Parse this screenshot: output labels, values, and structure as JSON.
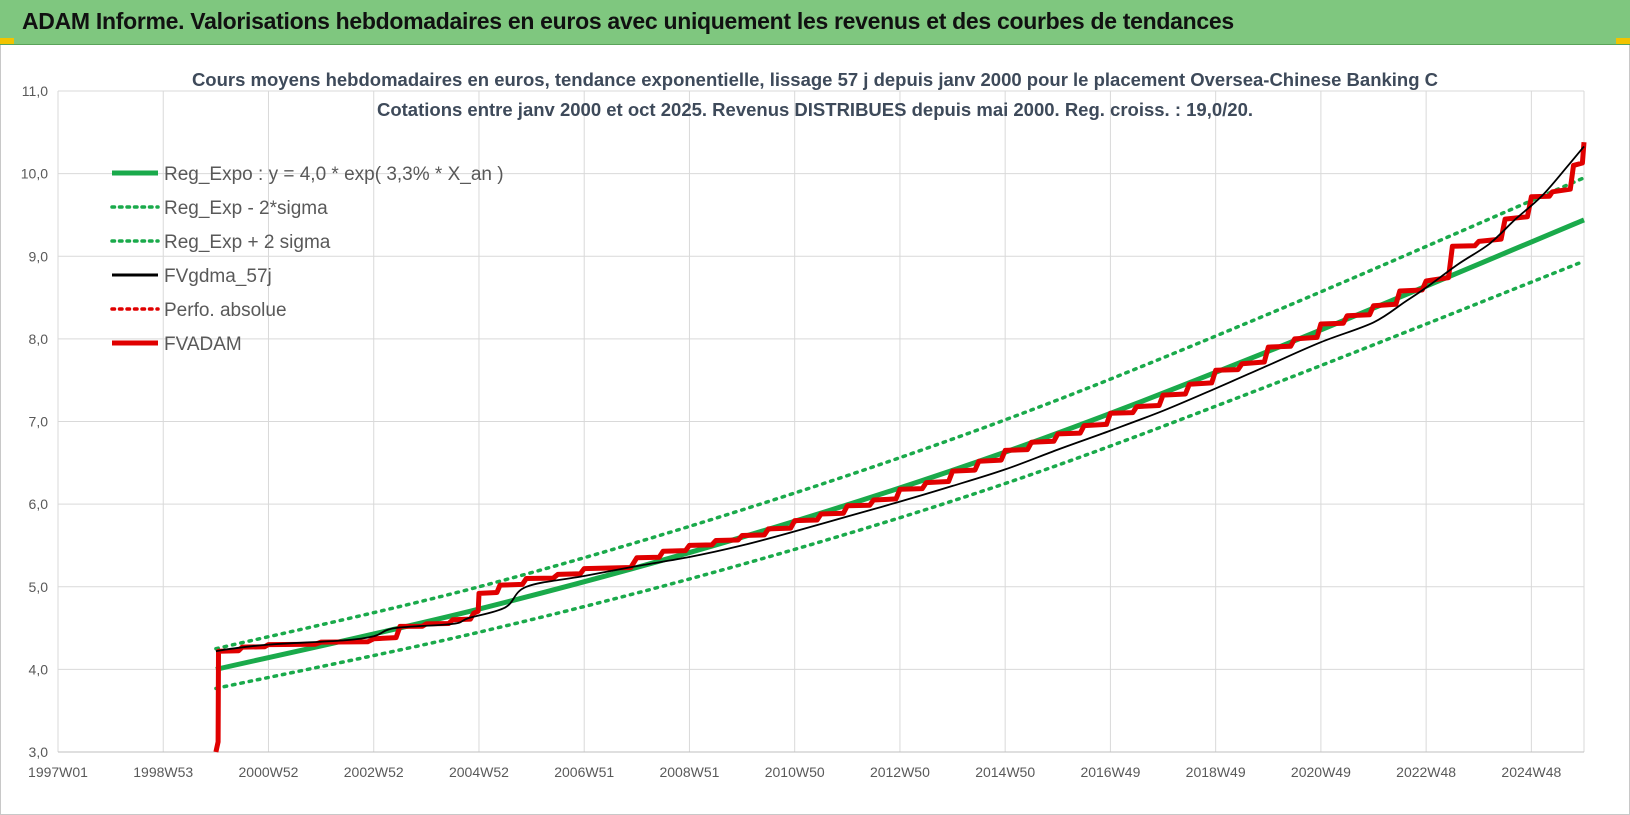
{
  "banner": {
    "title": "ADAM Informe. Valorisations hebdomadaires en euros avec uniquement les revenus et des courbes de tendances"
  },
  "colors": {
    "banner_bg": "#7fc77f",
    "trend_green": "#1aaa4b",
    "fvgdma_black": "#000000",
    "fvadam_red": "#e00000",
    "corner_accent": "#f2c400"
  },
  "chart_data": {
    "type": "line",
    "title_lines": [
      "Cours moyens hebdomadaires en euros, tendance exponentielle, lissage 57 j depuis janv 2000 pour le placement Oversea-Chinese Banking C",
      "Cotations entre janv 2000 et oct 2025. Revenus DISTRIBUES depuis mai 2000. Reg. croiss. : 19,0/20."
    ],
    "xlabel": "",
    "ylabel": "",
    "x_tick_labels": [
      "1997W01",
      "1998W53",
      "2000W52",
      "2002W52",
      "2004W52",
      "2006W51",
      "2008W51",
      "2010W50",
      "2012W50",
      "2014W50",
      "2016W49",
      "2018W49",
      "2020W49",
      "2022W48",
      "2024W48"
    ],
    "x_tick_years": [
      1997.0,
      1999.0,
      2001.0,
      2003.0,
      2005.0,
      2007.0,
      2009.0,
      2011.0,
      2013.0,
      2015.0,
      2017.0,
      2019.0,
      2021.0,
      2023.0,
      2025.0
    ],
    "x_range": [
      1997.0,
      2026.0
    ],
    "y_tick_labels": [
      "3,0",
      "4,0",
      "5,0",
      "6,0",
      "7,0",
      "8,0",
      "9,0",
      "10,0",
      "11,0"
    ],
    "ylim": [
      3.0,
      11.0
    ],
    "grid": true,
    "legend_position": "top-left",
    "legend": [
      {
        "label": "Reg_Expo : y = 4,0 * exp( 3,3% *  X_an )",
        "style": "solid",
        "color": "#1aaa4b"
      },
      {
        "label": "Reg_Exp - 2*sigma",
        "style": "dotted",
        "color": "#1aaa4b"
      },
      {
        "label": "Reg_Exp + 2 sigma",
        "style": "dotted",
        "color": "#1aaa4b"
      },
      {
        "label": "FVgdma_57j",
        "style": "solid-thin",
        "color": "#000000"
      },
      {
        "label": "Perfo. absolue",
        "style": "dotted",
        "color": "#e00000"
      },
      {
        "label": "FVADAM",
        "style": "solid-thick",
        "color": "#e00000"
      }
    ],
    "series": [
      {
        "name": "Reg_Expo : y = 4,0 * exp( 3,3% *  X_an )",
        "x": [
          2000.0,
          2005.0,
          2010.0,
          2015.0,
          2020.0,
          2026.0
        ],
        "y": [
          4.0,
          4.73,
          5.6,
          6.63,
          7.85,
          9.44
        ]
      },
      {
        "name": "Reg_Exp - 2*sigma",
        "x": [
          2000.0,
          2005.0,
          2010.0,
          2015.0,
          2020.0,
          2026.0
        ],
        "y": [
          3.77,
          4.45,
          5.27,
          6.25,
          7.43,
          8.94
        ]
      },
      {
        "name": "Reg_Exp + 2 sigma",
        "x": [
          2000.0,
          2005.0,
          2010.0,
          2015.0,
          2020.0,
          2026.0
        ],
        "y": [
          4.25,
          5.0,
          5.93,
          7.02,
          8.3,
          9.95
        ]
      },
      {
        "name": "FVgdma_57j",
        "x": [
          2000.0,
          2000.3,
          2001.0,
          2002.4,
          2003.0,
          2003.4,
          2004.5,
          2004.8,
          2005.5,
          2005.9,
          2007.0,
          2008.0,
          2009.0,
          2010.0,
          2011.0,
          2012.0,
          2013.0,
          2014.0,
          2015.0,
          2016.0,
          2017.0,
          2018.0,
          2019.0,
          2020.0,
          2021.0,
          2022.0,
          2022.6,
          2023.0,
          2023.6,
          2024.2,
          2024.7,
          2025.2,
          2025.7,
          2026.0
        ],
        "y": [
          4.22,
          4.25,
          4.3,
          4.35,
          4.4,
          4.5,
          4.55,
          4.62,
          4.75,
          5.0,
          5.13,
          5.25,
          5.36,
          5.5,
          5.67,
          5.85,
          6.03,
          6.22,
          6.42,
          6.66,
          6.89,
          7.13,
          7.4,
          7.68,
          7.96,
          8.2,
          8.45,
          8.62,
          8.9,
          9.15,
          9.45,
          9.73,
          10.1,
          10.33
        ]
      },
      {
        "name": "FVADAM",
        "x": [
          2000.0,
          2000.05,
          2000.5,
          2001.0,
          2002.0,
          2003.0,
          2003.5,
          2004.0,
          2004.5,
          2004.9,
          2005.0,
          2005.4,
          2005.9,
          2006.5,
          2007.0,
          2008.0,
          2008.5,
          2009.0,
          2009.5,
          2010.0,
          2010.5,
          2011.0,
          2011.5,
          2012.0,
          2012.5,
          2013.0,
          2013.5,
          2014.0,
          2014.5,
          2015.0,
          2015.5,
          2016.0,
          2016.5,
          2017.0,
          2017.5,
          2018.0,
          2018.5,
          2019.0,
          2019.5,
          2020.0,
          2020.5,
          2021.0,
          2021.5,
          2022.0,
          2022.5,
          2023.0,
          2023.5,
          2024.0,
          2024.5,
          2025.0,
          2025.4,
          2025.8,
          2026.0
        ],
        "y": [
          3.0,
          4.22,
          4.27,
          4.3,
          4.33,
          4.37,
          4.52,
          4.55,
          4.6,
          4.68,
          4.92,
          5.02,
          5.1,
          5.15,
          5.22,
          5.35,
          5.43,
          5.5,
          5.56,
          5.62,
          5.7,
          5.8,
          5.88,
          5.98,
          6.05,
          6.18,
          6.26,
          6.4,
          6.52,
          6.65,
          6.75,
          6.85,
          6.95,
          7.1,
          7.18,
          7.32,
          7.45,
          7.62,
          7.7,
          7.9,
          8.0,
          8.18,
          8.28,
          8.4,
          8.58,
          8.7,
          9.12,
          9.18,
          9.45,
          9.72,
          9.78,
          10.1,
          10.38
        ]
      }
    ]
  }
}
